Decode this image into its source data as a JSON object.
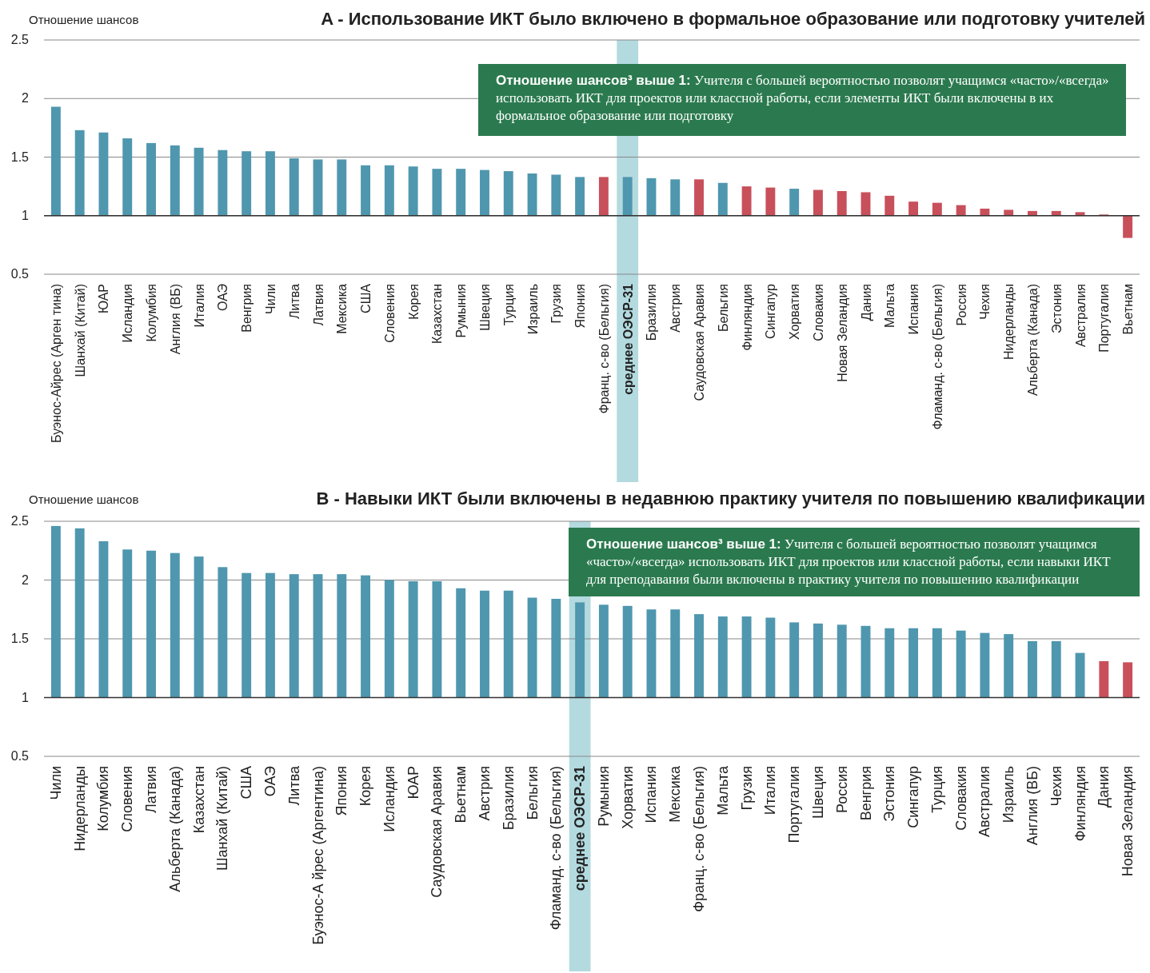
{
  "chart_data": [
    {
      "type": "bar",
      "title": "A - Использование ИКТ было включено в формальное образование или подготовку учителей",
      "ylabel": "Отношение шансов",
      "categories": [
        "Буэнос-Айрес (Арген тина)",
        "Шанхай (Китай)",
        "ЮАР",
        "Исландия",
        "Колумбия",
        "Англия (ВБ)",
        "Италия",
        "ОАЭ",
        "Венгрия",
        "Чили",
        "Литва",
        "Латвия",
        "Мексика",
        "США",
        "Словения",
        "Корея",
        "Казахстан",
        "Румыния",
        "Швеция",
        "Турция",
        "Израиль",
        "Грузия",
        "Япония",
        "Франц. с-во (Бельгия)",
        "среднее  ОЭСР-31",
        "Бразилия",
        "Австрия",
        "Саудовская Аравия",
        "Бельгия",
        "Финляндия",
        "Сингапур",
        "Хорватия",
        "Словакия",
        "Новая Зеландия",
        "Дания",
        "Мальта",
        "Испания",
        "Фламанд. с-во (Бельгия)",
        "Россия",
        "Чехия",
        "Нидерланды",
        "Альберта (Канада)",
        "Эстония",
        "Австралия",
        "Португалия",
        "Вьетнам"
      ],
      "values": [
        0.93,
        0.73,
        0.71,
        0.66,
        0.62,
        0.6,
        0.58,
        0.56,
        0.55,
        0.55,
        0.49,
        0.48,
        0.48,
        0.43,
        0.43,
        0.42,
        0.4,
        0.4,
        0.39,
        0.38,
        0.36,
        0.35,
        0.33,
        0.33,
        0.33,
        0.32,
        0.31,
        0.31,
        0.28,
        0.25,
        0.24,
        0.23,
        0.22,
        0.21,
        0.2,
        0.17,
        0.12,
        0.11,
        0.09,
        0.06,
        0.05,
        0.04,
        0.04,
        0.03,
        0.01,
        -0.19
      ],
      "base": [
        1,
        1,
        1,
        1,
        1,
        1,
        1,
        1,
        1,
        1,
        1,
        1,
        1,
        1,
        1,
        1,
        1,
        1,
        1,
        1,
        1,
        1,
        1,
        1,
        1,
        1,
        1,
        1,
        1,
        1,
        1,
        1,
        1,
        1,
        1,
        1,
        1,
        1,
        1,
        1,
        1,
        1,
        1,
        1,
        1,
        1
      ],
      "colors": [
        "#4f97ae",
        "#4f97ae",
        "#4f97ae",
        "#4f97ae",
        "#4f97ae",
        "#4f97ae",
        "#4f97ae",
        "#4f97ae",
        "#4f97ae",
        "#4f97ae",
        "#4f97ae",
        "#4f97ae",
        "#4f97ae",
        "#4f97ae",
        "#4f97ae",
        "#4f97ae",
        "#4f97ae",
        "#4f97ae",
        "#4f97ae",
        "#4f97ae",
        "#4f97ae",
        "#4f97ae",
        "#4f97ae",
        "#c8505b",
        "#4f97ae",
        "#4f97ae",
        "#4f97ae",
        "#c8505b",
        "#4f97ae",
        "#c8505b",
        "#c8505b",
        "#4f97ae",
        "#c8505b",
        "#c8505b",
        "#c8505b",
        "#c8505b",
        "#c8505b",
        "#c8505b",
        "#c8505b",
        "#c8505b",
        "#c8505b",
        "#c8505b",
        "#c8505b",
        "#c8505b",
        "#c8505b",
        "#c8505b"
      ],
      "ylim": [
        0.5,
        2.5
      ],
      "yticks": [
        0.5,
        1,
        1.5,
        2,
        2.5
      ],
      "grid": "y",
      "ref_lines": [
        {
          "axis": "y",
          "value": 1
        }
      ],
      "bands": [
        {
          "axis": "x",
          "from": "среднее  ОЭСР-31",
          "to": "среднее  ОЭСР-31",
          "color": "#b3dadf"
        }
      ],
      "annotations": [
        "Отношение шансов³ выше 1: Учителя с большей вероятностью позволят учащимся «часто»/«всегда» использовать ИКТ для проектов или классной работы, если элементы ИКТ были включены в их формальное образование или подготовку"
      ]
    },
    {
      "type": "bar",
      "title": "B - Навыки ИКТ были включены в недавнюю практику учителя по повышению квалификации",
      "ylabel": "Отношение шансов",
      "categories": [
        "Чили",
        "Нидерланды",
        "Колумбия",
        "Словения",
        "Латвия",
        "Альберта (Канада)",
        "Казахстан",
        "Шанхай (Китай)",
        "США",
        "ОАЭ",
        "Литва",
        "Буэнос-А йрес (Аргентина)",
        "Япония",
        "Корея",
        "Исландия",
        "ЮАР",
        "Саудовская Аравия",
        "Вьетнам",
        "Австрия",
        "Бразилия",
        "Бельгия",
        "Фламанд. с-во (Бельгия)",
        "среднее  ОЭСР-31",
        "Румыния",
        "Хорватия",
        "Испания",
        "Мексика",
        "Франц. с-во (Бельгия)",
        "Мальта",
        "Грузия",
        "Италия",
        "Португалия",
        "Швеция",
        "Россия",
        "Венгрия",
        "Эстония",
        "Сингапур",
        "Турция",
        "Словакия",
        "Австралия",
        "Израиль",
        "Англия (ВБ)",
        "Чехия",
        "Финляндия",
        "Дания",
        "Новая Зеландия"
      ],
      "values": [
        1.46,
        1.44,
        1.33,
        1.26,
        1.25,
        1.23,
        1.2,
        1.11,
        1.06,
        1.06,
        1.05,
        1.05,
        1.05,
        1.04,
        1.0,
        0.99,
        0.99,
        0.93,
        0.91,
        0.91,
        0.85,
        0.84,
        0.81,
        0.79,
        0.78,
        0.75,
        0.75,
        0.71,
        0.69,
        0.69,
        0.68,
        0.64,
        0.63,
        0.62,
        0.61,
        0.59,
        0.59,
        0.59,
        0.57,
        0.55,
        0.54,
        0.48,
        0.48,
        0.38,
        0.31,
        0.3
      ],
      "base": [
        1,
        1,
        1,
        1,
        1,
        1,
        1,
        1,
        1,
        1,
        1,
        1,
        1,
        1,
        1,
        1,
        1,
        1,
        1,
        1,
        1,
        1,
        1,
        1,
        1,
        1,
        1,
        1,
        1,
        1,
        1,
        1,
        1,
        1,
        1,
        1,
        1,
        1,
        1,
        1,
        1,
        1,
        1,
        1,
        1,
        1
      ],
      "colors": [
        "#4f97ae",
        "#4f97ae",
        "#4f97ae",
        "#4f97ae",
        "#4f97ae",
        "#4f97ae",
        "#4f97ae",
        "#4f97ae",
        "#4f97ae",
        "#4f97ae",
        "#4f97ae",
        "#4f97ae",
        "#4f97ae",
        "#4f97ae",
        "#4f97ae",
        "#4f97ae",
        "#4f97ae",
        "#4f97ae",
        "#4f97ae",
        "#4f97ae",
        "#4f97ae",
        "#4f97ae",
        "#4f97ae",
        "#4f97ae",
        "#4f97ae",
        "#4f97ae",
        "#4f97ae",
        "#4f97ae",
        "#4f97ae",
        "#4f97ae",
        "#4f97ae",
        "#4f97ae",
        "#4f97ae",
        "#4f97ae",
        "#4f97ae",
        "#4f97ae",
        "#4f97ae",
        "#4f97ae",
        "#4f97ae",
        "#4f97ae",
        "#4f97ae",
        "#4f97ae",
        "#4f97ae",
        "#4f97ae",
        "#c8505b",
        "#c8505b"
      ],
      "ylim": [
        0.5,
        2.5
      ],
      "yticks": [
        0.5,
        1,
        1.5,
        2,
        2.5
      ],
      "grid": "y",
      "ref_lines": [
        {
          "axis": "y",
          "value": 1
        }
      ],
      "bands": [
        {
          "axis": "x",
          "from": "среднее  ОЭСР-31",
          "to": "среднее  ОЭСР-31",
          "color": "#b3dadf"
        }
      ],
      "annotations": [
        "Отношение шансов³ выше 1: Учителя с большей вероятностью позволят учащимся «часто»/«всегда» использовать ИКТ для проектов или классной работы, если навыки ИКТ для преподавания были включены в практику учителя по повышению квалификации"
      ]
    }
  ]
}
